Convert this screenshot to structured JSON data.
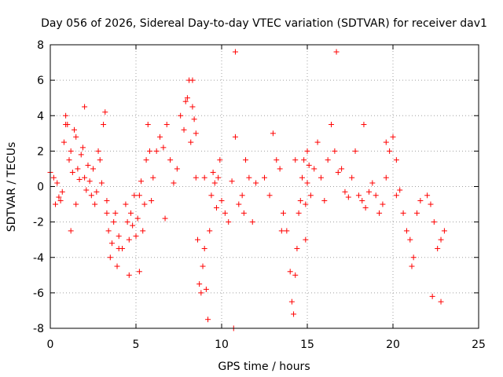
{
  "chart_data": {
    "type": "scatter",
    "title": "Day 056 of 2026, Sidereal Day-to-day VTEC variation (SDTVAR) for receiver dav1",
    "xlabel": "GPS time / hours",
    "ylabel": "SDTVAR / TECUs",
    "xlim": [
      0,
      25
    ],
    "ylim": [
      -8,
      8
    ],
    "x_ticks": [
      "0",
      "5",
      "10",
      "15",
      "20",
      "25"
    ],
    "y_ticks": [
      "-8",
      "-6",
      "-4",
      "-2",
      "0",
      "2",
      "4",
      "6",
      "8"
    ],
    "grid": true,
    "marker": "+",
    "series": [
      {
        "name": "dav1",
        "color": "#ff0000",
        "x": [
          0.0,
          0.2,
          0.4,
          0.5,
          0.6,
          0.7,
          0.8,
          0.9,
          1.0,
          1.1,
          1.2,
          1.3,
          1.4,
          1.5,
          1.6,
          1.7,
          1.8,
          1.9,
          2.0,
          2.1,
          2.2,
          2.3,
          2.4,
          2.5,
          2.6,
          2.7,
          2.8,
          2.9,
          3.0,
          3.1,
          3.2,
          3.3,
          3.4,
          3.5,
          3.6,
          3.7,
          3.8,
          3.9,
          4.0,
          4.2,
          4.4,
          4.5,
          4.6,
          4.7,
          4.8,
          4.9,
          5.0,
          5.1,
          5.2,
          5.3,
          5.4,
          5.5,
          5.6,
          5.7,
          5.8,
          5.9,
          6.0,
          6.2,
          6.4,
          6.6,
          6.8,
          7.0,
          7.2,
          7.4,
          7.6,
          7.8,
          8.0,
          8.1,
          8.2,
          8.3,
          8.4,
          8.5,
          8.6,
          8.7,
          8.8,
          8.9,
          9.0,
          9.1,
          9.2,
          9.3,
          9.4,
          9.5,
          9.6,
          9.7,
          9.8,
          9.9,
          10.0,
          10.2,
          10.4,
          10.6,
          10.8,
          11.0,
          11.2,
          11.4,
          11.6,
          11.8,
          12.0,
          12.5,
          12.8,
          13.0,
          13.2,
          13.4,
          13.6,
          13.8,
          14.0,
          14.1,
          14.2,
          14.3,
          14.4,
          14.5,
          14.6,
          14.7,
          14.8,
          14.9,
          15.0,
          15.1,
          15.2,
          15.4,
          15.6,
          15.8,
          16.0,
          16.2,
          16.4,
          16.6,
          16.8,
          17.0,
          17.2,
          17.4,
          17.6,
          17.8,
          18.0,
          18.2,
          18.4,
          18.6,
          18.8,
          19.0,
          19.2,
          19.4,
          19.6,
          19.8,
          20.0,
          20.2,
          20.4,
          20.6,
          20.8,
          21.0,
          21.2,
          21.4,
          21.6,
          22.0,
          22.2,
          22.4,
          22.6,
          22.8,
          23.0,
          0.3,
          0.9,
          1.2,
          1.5,
          2.0,
          3.3,
          4.0,
          4.6,
          5.2,
          6.7,
          7.9,
          8.3,
          8.5,
          9.0,
          10.7,
          10.8,
          11.3,
          13.5,
          14.3,
          14.9,
          15.0,
          16.7,
          18.3,
          19.6,
          20.2,
          21.1,
          22.3,
          22.8
        ],
        "y": [
          0.8,
          0.5,
          0.2,
          -0.6,
          -0.8,
          -0.3,
          2.5,
          4.0,
          3.5,
          1.5,
          2.0,
          0.8,
          3.2,
          2.8,
          1.0,
          0.4,
          1.8,
          2.2,
          0.5,
          -0.2,
          1.2,
          0.3,
          -0.5,
          1.0,
          -1.0,
          -0.3,
          2.0,
          1.5,
          0.2,
          3.5,
          4.2,
          -0.8,
          -2.5,
          -4.0,
          -3.2,
          -2.0,
          -1.5,
          -4.5,
          -2.8,
          -3.5,
          -1.0,
          -2.0,
          -3.0,
          -1.5,
          -2.2,
          -0.5,
          -2.8,
          -1.8,
          -0.5,
          0.3,
          -2.5,
          -1.0,
          1.5,
          3.5,
          2.0,
          -0.8,
          0.5,
          2.0,
          2.8,
          2.2,
          3.5,
          1.5,
          0.2,
          1.0,
          4.0,
          3.2,
          5.0,
          6.0,
          2.5,
          4.5,
          3.8,
          0.5,
          -3.0,
          -5.5,
          -6.0,
          -4.5,
          -3.5,
          -5.8,
          -7.5,
          -2.5,
          -0.5,
          0.8,
          0.2,
          -1.2,
          0.5,
          1.5,
          -0.8,
          -1.5,
          -2.0,
          0.3,
          2.8,
          -1.0,
          -0.5,
          1.5,
          0.5,
          -2.0,
          0.2,
          0.5,
          -0.5,
          3.0,
          1.5,
          1.0,
          -1.5,
          -2.5,
          -4.8,
          -6.5,
          -7.2,
          -5.0,
          -3.5,
          -1.5,
          -0.8,
          0.5,
          1.5,
          -1.0,
          0.2,
          1.2,
          -0.5,
          1.0,
          2.5,
          0.5,
          -0.8,
          1.5,
          3.5,
          2.0,
          0.8,
          1.0,
          -0.3,
          -0.6,
          0.5,
          2.0,
          -0.5,
          -0.8,
          -1.2,
          -0.3,
          0.2,
          -0.5,
          -1.5,
          -1.0,
          0.5,
          2.0,
          2.8,
          1.5,
          -0.2,
          -1.5,
          -2.5,
          -3.0,
          -4.0,
          -1.5,
          -0.8,
          -0.5,
          -1.0,
          -2.0,
          -3.5,
          -3.0,
          -2.5,
          -1.0,
          3.5,
          -2.5,
          -1.0,
          4.5,
          -1.5,
          -3.5,
          -5.0,
          -4.8,
          -1.8,
          4.8,
          6.0,
          3.0,
          0.5,
          -8.0,
          7.6,
          -1.5,
          -2.5,
          1.5,
          -3.0,
          2.0,
          7.6,
          3.5,
          2.5,
          -0.5,
          -4.5,
          -6.2,
          -6.5
        ]
      }
    ]
  }
}
